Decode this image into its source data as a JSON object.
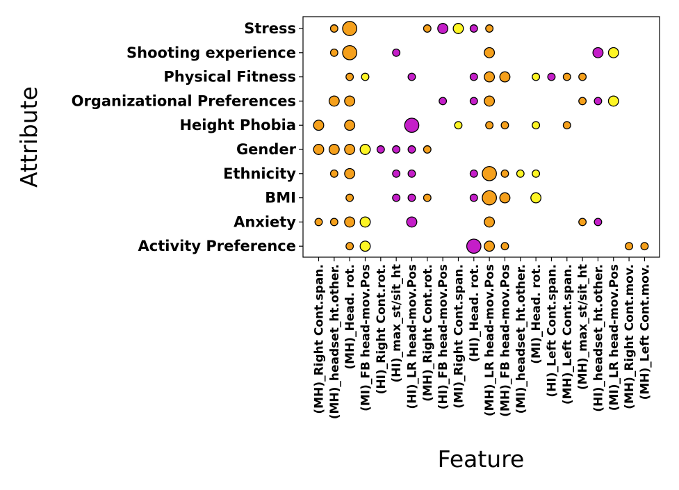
{
  "chart_data": {
    "type": "scatter",
    "title": "",
    "xlabel": "Feature",
    "ylabel": "Attribute",
    "grid": false,
    "colors": {
      "orange": "#f5a01c",
      "purple": "#c41ec8",
      "yellow": "#fdf524"
    },
    "features": [
      "(MH)_Right Cont.span.",
      "(MH)_headset_ht.other.",
      "(MH)_Head. rot.",
      "(MI)_FB head-mov.Pos",
      "(HI)_Right Cont.rot.",
      "(HI)_max_st/sit_ht",
      "(HI)_LR head-mov.Pos",
      "(MH)_Right Cont.rot.",
      "(HI)_FB head-mov.Pos",
      "(MI)_Right Cont.span.",
      "(HI)_Head. rot.",
      "(MH)_LR head-mov.Pos",
      "(MH)_FB head-mov.Pos",
      "(MI)_headset_ht.other.",
      "(MI)_Head. rot.",
      "(HI)_Left Cont.span.",
      "(MH)_Left Cont.span.",
      "(MH)_max_st/sit_ht",
      "(HI)_headset_ht.other.",
      "(MI)_LR head-mov.Pos",
      "(MH)_Right Cont.mov.",
      "(MH)_Left Cont.mov."
    ],
    "attributes": [
      "Stress",
      "Shooting experience",
      "Physical Fitness",
      "Organizational Preferences",
      "Height Phobia",
      "Gender",
      "Ethnicity",
      "BMI",
      "Anxiety",
      "Activity Preference"
    ],
    "points": [
      {
        "attribute": "Stress",
        "feature": "(MH)_headset_ht.other.",
        "color": "orange",
        "size": 1
      },
      {
        "attribute": "Stress",
        "feature": "(MH)_Head. rot.",
        "color": "orange",
        "size": 3
      },
      {
        "attribute": "Stress",
        "feature": "(MH)_Right Cont.rot.",
        "color": "orange",
        "size": 1
      },
      {
        "attribute": "Stress",
        "feature": "(HI)_FB head-mov.Pos",
        "color": "purple",
        "size": 2
      },
      {
        "attribute": "Stress",
        "feature": "(MI)_Right Cont.span.",
        "color": "yellow",
        "size": 2
      },
      {
        "attribute": "Stress",
        "feature": "(HI)_Head. rot.",
        "color": "purple",
        "size": 1
      },
      {
        "attribute": "Stress",
        "feature": "(MH)_LR head-mov.Pos",
        "color": "orange",
        "size": 1
      },
      {
        "attribute": "Shooting experience",
        "feature": "(MH)_headset_ht.other.",
        "color": "orange",
        "size": 1
      },
      {
        "attribute": "Shooting experience",
        "feature": "(MH)_Head. rot.",
        "color": "orange",
        "size": 3
      },
      {
        "attribute": "Shooting experience",
        "feature": "(HI)_max_st/sit_ht",
        "color": "purple",
        "size": 1
      },
      {
        "attribute": "Shooting experience",
        "feature": "(MH)_LR head-mov.Pos",
        "color": "orange",
        "size": 2
      },
      {
        "attribute": "Shooting experience",
        "feature": "(HI)_headset_ht.other.",
        "color": "purple",
        "size": 2
      },
      {
        "attribute": "Shooting experience",
        "feature": "(MI)_LR head-mov.Pos",
        "color": "yellow",
        "size": 2
      },
      {
        "attribute": "Physical Fitness",
        "feature": "(MH)_Head. rot.",
        "color": "orange",
        "size": 1
      },
      {
        "attribute": "Physical Fitness",
        "feature": "(MI)_FB head-mov.Pos",
        "color": "yellow",
        "size": 1
      },
      {
        "attribute": "Physical Fitness",
        "feature": "(HI)_LR head-mov.Pos",
        "color": "purple",
        "size": 1
      },
      {
        "attribute": "Physical Fitness",
        "feature": "(HI)_Head. rot.",
        "color": "purple",
        "size": 1
      },
      {
        "attribute": "Physical Fitness",
        "feature": "(MH)_LR head-mov.Pos",
        "color": "orange",
        "size": 2
      },
      {
        "attribute": "Physical Fitness",
        "feature": "(MH)_FB head-mov.Pos",
        "color": "orange",
        "size": 2
      },
      {
        "attribute": "Physical Fitness",
        "feature": "(MI)_Head. rot.",
        "color": "yellow",
        "size": 1
      },
      {
        "attribute": "Physical Fitness",
        "feature": "(HI)_Left Cont.span.",
        "color": "purple",
        "size": 1
      },
      {
        "attribute": "Physical Fitness",
        "feature": "(MH)_Left Cont.span.",
        "color": "orange",
        "size": 1
      },
      {
        "attribute": "Physical Fitness",
        "feature": "(MH)_max_st/sit_ht",
        "color": "orange",
        "size": 1
      },
      {
        "attribute": "Organizational Preferences",
        "feature": "(MH)_headset_ht.other.",
        "color": "orange",
        "size": 2
      },
      {
        "attribute": "Organizational Preferences",
        "feature": "(MH)_Head. rot.",
        "color": "orange",
        "size": 2
      },
      {
        "attribute": "Organizational Preferences",
        "feature": "(HI)_FB head-mov.Pos",
        "color": "purple",
        "size": 1
      },
      {
        "attribute": "Organizational Preferences",
        "feature": "(HI)_Head. rot.",
        "color": "purple",
        "size": 1
      },
      {
        "attribute": "Organizational Preferences",
        "feature": "(MH)_LR head-mov.Pos",
        "color": "orange",
        "size": 2
      },
      {
        "attribute": "Organizational Preferences",
        "feature": "(MH)_max_st/sit_ht",
        "color": "orange",
        "size": 1
      },
      {
        "attribute": "Organizational Preferences",
        "feature": "(HI)_headset_ht.other.",
        "color": "purple",
        "size": 1
      },
      {
        "attribute": "Organizational Preferences",
        "feature": "(MI)_LR head-mov.Pos",
        "color": "yellow",
        "size": 2
      },
      {
        "attribute": "Height Phobia",
        "feature": "(MH)_Right Cont.span.",
        "color": "orange",
        "size": 2
      },
      {
        "attribute": "Height Phobia",
        "feature": "(MH)_Head. rot.",
        "color": "orange",
        "size": 2
      },
      {
        "attribute": "Height Phobia",
        "feature": "(HI)_LR head-mov.Pos",
        "color": "purple",
        "size": 3
      },
      {
        "attribute": "Height Phobia",
        "feature": "(MI)_Right Cont.span.",
        "color": "yellow",
        "size": 1
      },
      {
        "attribute": "Height Phobia",
        "feature": "(MH)_LR head-mov.Pos",
        "color": "orange",
        "size": 1
      },
      {
        "attribute": "Height Phobia",
        "feature": "(MH)_FB head-mov.Pos",
        "color": "orange",
        "size": 1
      },
      {
        "attribute": "Height Phobia",
        "feature": "(MI)_Head. rot.",
        "color": "yellow",
        "size": 1
      },
      {
        "attribute": "Height Phobia",
        "feature": "(MH)_Left Cont.span.",
        "color": "orange",
        "size": 1
      },
      {
        "attribute": "Gender",
        "feature": "(MH)_Right Cont.span.",
        "color": "orange",
        "size": 2
      },
      {
        "attribute": "Gender",
        "feature": "(MH)_headset_ht.other.",
        "color": "orange",
        "size": 2
      },
      {
        "attribute": "Gender",
        "feature": "(MH)_Head. rot.",
        "color": "orange",
        "size": 2
      },
      {
        "attribute": "Gender",
        "feature": "(MI)_FB head-mov.Pos",
        "color": "yellow",
        "size": 2
      },
      {
        "attribute": "Gender",
        "feature": "(HI)_Right Cont.rot.",
        "color": "purple",
        "size": 1
      },
      {
        "attribute": "Gender",
        "feature": "(HI)_max_st/sit_ht",
        "color": "purple",
        "size": 1
      },
      {
        "attribute": "Gender",
        "feature": "(HI)_LR head-mov.Pos",
        "color": "purple",
        "size": 1
      },
      {
        "attribute": "Gender",
        "feature": "(MH)_Right Cont.rot.",
        "color": "orange",
        "size": 1
      },
      {
        "attribute": "Ethnicity",
        "feature": "(MH)_headset_ht.other.",
        "color": "orange",
        "size": 1
      },
      {
        "attribute": "Ethnicity",
        "feature": "(MH)_Head. rot.",
        "color": "orange",
        "size": 2
      },
      {
        "attribute": "Ethnicity",
        "feature": "(HI)_max_st/sit_ht",
        "color": "purple",
        "size": 1
      },
      {
        "attribute": "Ethnicity",
        "feature": "(HI)_LR head-mov.Pos",
        "color": "purple",
        "size": 1
      },
      {
        "attribute": "Ethnicity",
        "feature": "(HI)_Head. rot.",
        "color": "purple",
        "size": 1
      },
      {
        "attribute": "Ethnicity",
        "feature": "(MH)_LR head-mov.Pos",
        "color": "orange",
        "size": 3
      },
      {
        "attribute": "Ethnicity",
        "feature": "(MH)_FB head-mov.Pos",
        "color": "orange",
        "size": 1
      },
      {
        "attribute": "Ethnicity",
        "feature": "(MI)_headset_ht.other.",
        "color": "yellow",
        "size": 1
      },
      {
        "attribute": "Ethnicity",
        "feature": "(MI)_Head. rot.",
        "color": "yellow",
        "size": 1
      },
      {
        "attribute": "BMI",
        "feature": "(MH)_Head. rot.",
        "color": "orange",
        "size": 1
      },
      {
        "attribute": "BMI",
        "feature": "(HI)_max_st/sit_ht",
        "color": "purple",
        "size": 1
      },
      {
        "attribute": "BMI",
        "feature": "(HI)_LR head-mov.Pos",
        "color": "purple",
        "size": 1
      },
      {
        "attribute": "BMI",
        "feature": "(MH)_Right Cont.rot.",
        "color": "orange",
        "size": 1
      },
      {
        "attribute": "BMI",
        "feature": "(HI)_Head. rot.",
        "color": "purple",
        "size": 1
      },
      {
        "attribute": "BMI",
        "feature": "(MH)_LR head-mov.Pos",
        "color": "orange",
        "size": 3
      },
      {
        "attribute": "BMI",
        "feature": "(MH)_FB head-mov.Pos",
        "color": "orange",
        "size": 2
      },
      {
        "attribute": "BMI",
        "feature": "(MI)_Head. rot.",
        "color": "yellow",
        "size": 2
      },
      {
        "attribute": "Anxiety",
        "feature": "(MH)_Right Cont.span.",
        "color": "orange",
        "size": 1
      },
      {
        "attribute": "Anxiety",
        "feature": "(MH)_headset_ht.other.",
        "color": "orange",
        "size": 1
      },
      {
        "attribute": "Anxiety",
        "feature": "(MH)_Head. rot.",
        "color": "orange",
        "size": 2
      },
      {
        "attribute": "Anxiety",
        "feature": "(MI)_FB head-mov.Pos",
        "color": "yellow",
        "size": 2
      },
      {
        "attribute": "Anxiety",
        "feature": "(HI)_LR head-mov.Pos",
        "color": "purple",
        "size": 2
      },
      {
        "attribute": "Anxiety",
        "feature": "(MH)_LR head-mov.Pos",
        "color": "orange",
        "size": 2
      },
      {
        "attribute": "Anxiety",
        "feature": "(MH)_max_st/sit_ht",
        "color": "orange",
        "size": 1
      },
      {
        "attribute": "Anxiety",
        "feature": "(HI)_headset_ht.other.",
        "color": "purple",
        "size": 1
      },
      {
        "attribute": "Activity Preference",
        "feature": "(MH)_Head. rot.",
        "color": "orange",
        "size": 1
      },
      {
        "attribute": "Activity Preference",
        "feature": "(MI)_FB head-mov.Pos",
        "color": "yellow",
        "size": 2
      },
      {
        "attribute": "Activity Preference",
        "feature": "(HI)_Head. rot.",
        "color": "purple",
        "size": 3
      },
      {
        "attribute": "Activity Preference",
        "feature": "(MH)_LR head-mov.Pos",
        "color": "orange",
        "size": 2
      },
      {
        "attribute": "Activity Preference",
        "feature": "(MH)_FB head-mov.Pos",
        "color": "orange",
        "size": 1
      },
      {
        "attribute": "Activity Preference",
        "feature": "(MH)_Right Cont.mov.",
        "color": "orange",
        "size": 1
      },
      {
        "attribute": "Activity Preference",
        "feature": "(MH)_Left Cont.mov.",
        "color": "orange",
        "size": 1
      }
    ]
  }
}
